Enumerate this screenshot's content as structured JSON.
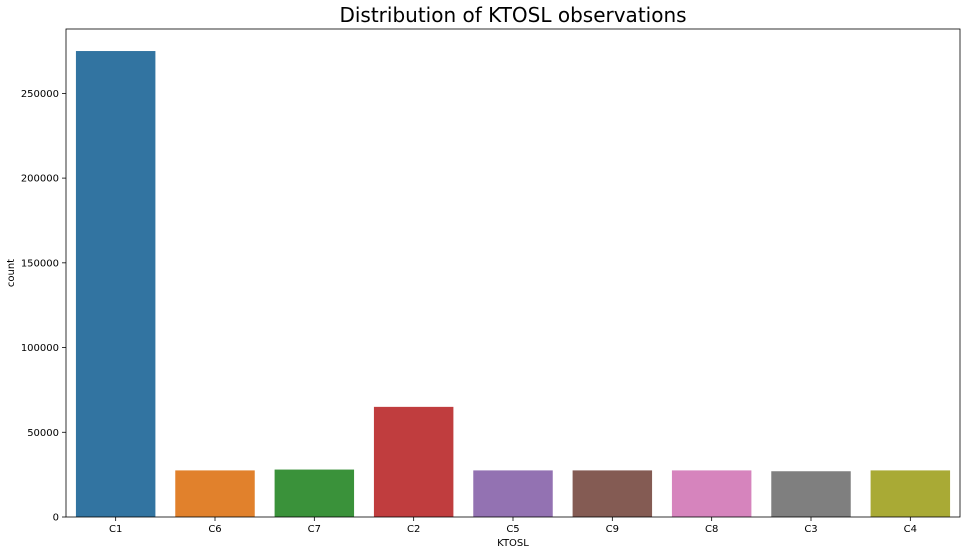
{
  "chart_data": {
    "type": "bar",
    "title": "Distribution of KTOSL observations",
    "xlabel": "KTOSL",
    "ylabel": "count",
    "categories": [
      "C1",
      "C6",
      "C7",
      "C2",
      "C5",
      "C9",
      "C8",
      "C3",
      "C4"
    ],
    "values": [
      275000,
      27500,
      28000,
      65000,
      27500,
      27500,
      27500,
      27000,
      27500
    ],
    "ylim": [
      0,
      288000
    ],
    "yticks": [
      0,
      50000,
      100000,
      150000,
      200000,
      250000
    ],
    "ytick_labels": [
      "0",
      "50000",
      "100000",
      "150000",
      "200000",
      "250000"
    ],
    "colors": [
      "#3274a1",
      "#e1812c",
      "#3a923a",
      "#c03d3e",
      "#9372b2",
      "#845b53",
      "#d684bd",
      "#7f7f7f",
      "#a9aa35"
    ],
    "grid": false,
    "legend": "none"
  }
}
